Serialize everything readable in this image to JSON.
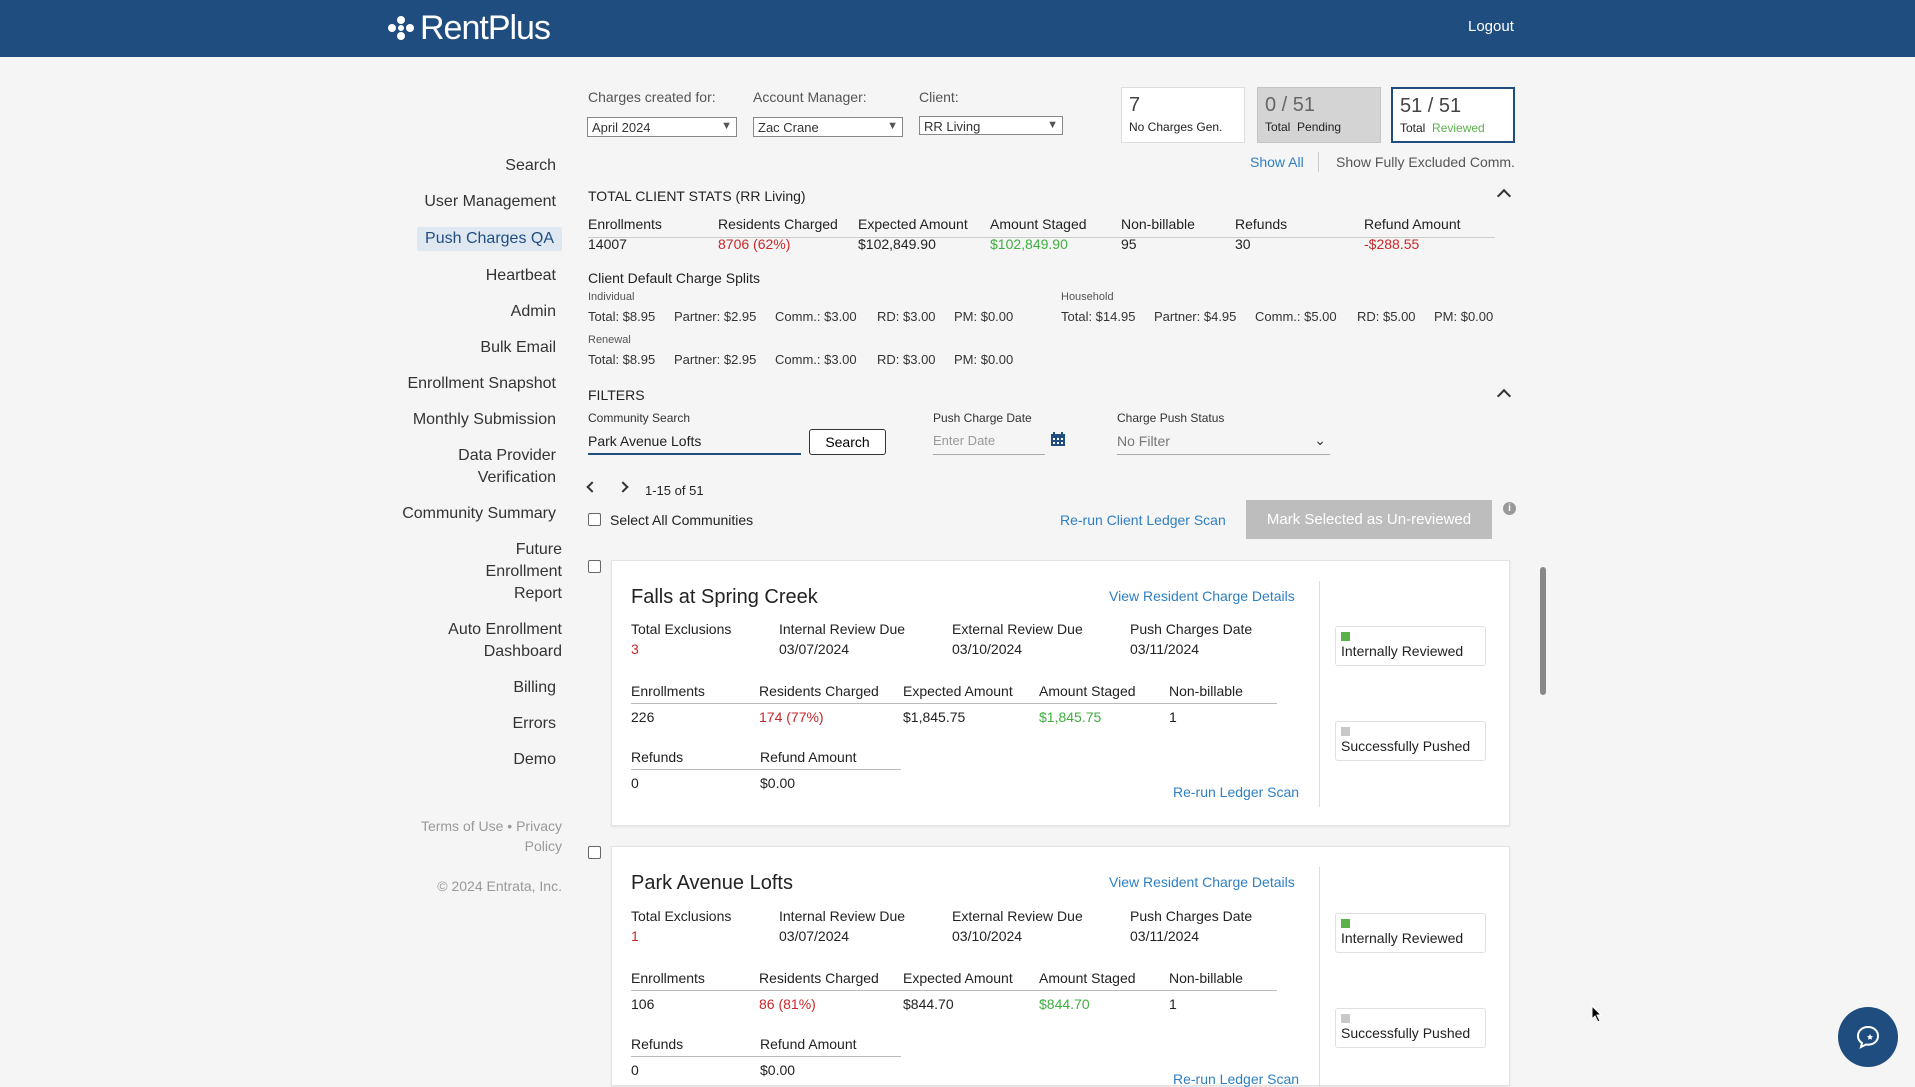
{
  "header": {
    "brand": "RentPlus",
    "logout": "Logout"
  },
  "sidebar": {
    "items": [
      "Search",
      "User Management",
      "Push Charges QA",
      "Heartbeat",
      "Admin",
      "Bulk Email",
      "Enrollment Snapshot",
      "Monthly Submission",
      "Data Provider Verification",
      "Community Summary",
      "Future Enrollment Report",
      "Auto Enrollment Dashboard",
      "Billing",
      "Errors",
      "Demo"
    ],
    "active": "Push Charges QA",
    "terms": "Terms of Use",
    "sep": "•",
    "privacy": "Privacy Policy",
    "copyright": "© 2024 Entrata, Inc."
  },
  "selectors": {
    "charges_label": "Charges created for:",
    "charges_value": "April 2024",
    "manager_label": "Account Manager:",
    "manager_value": "Zac Crane",
    "client_label": "Client:",
    "client_value": "RR Living"
  },
  "summary": {
    "no_charges_count": "7",
    "no_charges_label": "No Charges Gen.",
    "pending_count": "0 / 51",
    "pending_label_a": "Total",
    "pending_label_b": "Pending",
    "reviewed_count": "51 / 51",
    "reviewed_label_a": "Total",
    "reviewed_label_b": "Reviewed",
    "show_all": "Show All",
    "show_excluded": "Show Fully Excluded Comm."
  },
  "client_stats": {
    "title": "TOTAL CLIENT STATS (RR Living)",
    "headers": [
      "Enrollments",
      "Residents Charged",
      "Expected Amount",
      "Amount Staged",
      "Non-billable",
      "Refunds",
      "Refund Amount"
    ],
    "values": [
      "14007",
      "8706 (62%)",
      "$102,849.90",
      "$102,849.90",
      "95",
      "30",
      "-$288.55"
    ]
  },
  "splits": {
    "title": "Client Default Charge Splits",
    "individual_label": "Individual",
    "individual": [
      "Total: $8.95",
      "Partner: $2.95",
      "Comm.: $3.00",
      "RD: $3.00",
      "PM: $0.00"
    ],
    "household_label": "Household",
    "household": [
      "Total: $14.95",
      "Partner: $4.95",
      "Comm.: $5.00",
      "RD: $5.00",
      "PM: $0.00"
    ],
    "renewal_label": "Renewal",
    "renewal": [
      "Total: $8.95",
      "Partner: $2.95",
      "Comm.: $3.00",
      "RD: $3.00",
      "PM: $0.00"
    ]
  },
  "filters": {
    "title": "FILTERS",
    "community_label": "Community Search",
    "community_value": "Park Avenue Lofts",
    "search_btn": "Search",
    "date_label": "Push Charge Date",
    "date_placeholder": "Enter Date",
    "status_label": "Charge Push Status",
    "status_value": "No Filter"
  },
  "pagination": {
    "range": "1-15 of 51"
  },
  "actions": {
    "select_all": "Select All Communities",
    "rerun_client": "Re-run Client Ledger Scan",
    "mark_unreviewed": "Mark Selected as Un-reviewed"
  },
  "cards": [
    {
      "name": "Falls at Spring Creek",
      "view_link": "View Resident Charge Details",
      "meta_headers": [
        "Total Exclusions",
        "Internal Review Due",
        "External Review Due",
        "Push Charges Date"
      ],
      "meta_values": [
        "3",
        "03/07/2024",
        "03/10/2024",
        "03/11/2024"
      ],
      "stat_headers": [
        "Enrollments",
        "Residents Charged",
        "Expected Amount",
        "Amount Staged",
        "Non-billable"
      ],
      "stat_values": [
        "226",
        "174 (77%)",
        "$1,845.75",
        "$1,845.75",
        "1"
      ],
      "refund_headers": [
        "Refunds",
        "Refund Amount"
      ],
      "refund_values": [
        "0",
        "$0.00"
      ],
      "rerun": "Re-run Ledger Scan",
      "status_internal": "Internally Reviewed",
      "status_pushed": "Successfully Pushed"
    },
    {
      "name": "Park Avenue Lofts",
      "view_link": "View Resident Charge Details",
      "meta_headers": [
        "Total Exclusions",
        "Internal Review Due",
        "External Review Due",
        "Push Charges Date"
      ],
      "meta_values": [
        "1",
        "03/07/2024",
        "03/10/2024",
        "03/11/2024"
      ],
      "stat_headers": [
        "Enrollments",
        "Residents Charged",
        "Expected Amount",
        "Amount Staged",
        "Non-billable"
      ],
      "stat_values": [
        "106",
        "86 (81%)",
        "$844.70",
        "$844.70",
        "1"
      ],
      "refund_headers": [
        "Refunds",
        "Refund Amount"
      ],
      "refund_values": [
        "0",
        "$0.00"
      ],
      "rerun": "Re-run Ledger Scan",
      "status_internal": "Internally Reviewed",
      "status_pushed": "Successfully Pushed"
    }
  ],
  "colors": {
    "brand": "#1f4d80",
    "link": "#2f7fc4",
    "red": "#c8282a",
    "green": "#3fae3f",
    "status_green": "#5bb24b",
    "status_gray": "#c8c8c8"
  }
}
